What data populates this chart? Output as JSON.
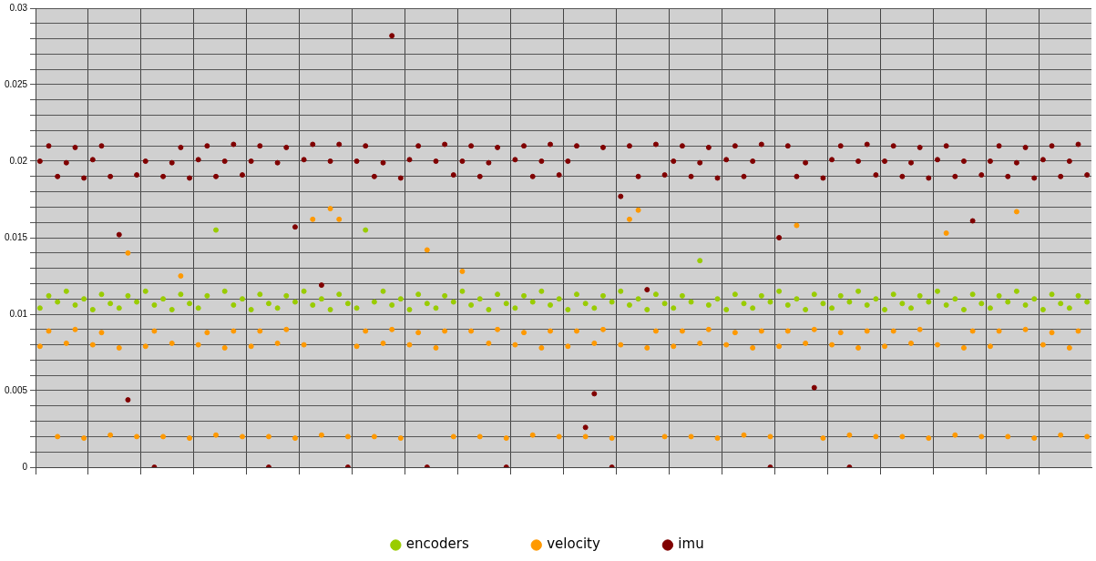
{
  "chart_data": {
    "type": "scatter",
    "legend": "bottom",
    "grid": true,
    "marker": "circle",
    "tick_labels": "y",
    "categories": [
      null,
      null,
      null,
      null,
      null,
      null,
      null,
      null,
      null,
      null,
      null,
      null,
      null,
      null,
      null,
      null,
      null,
      null,
      null,
      null,
      null,
      null,
      null,
      null,
      null,
      null,
      null,
      null,
      null,
      null,
      null,
      null,
      null,
      null,
      null,
      null,
      null,
      null,
      null,
      null,
      null,
      null,
      null,
      null,
      null,
      null,
      null,
      null,
      null,
      null,
      null,
      null,
      null,
      null,
      null,
      null,
      null,
      null,
      null,
      null,
      null,
      null,
      null,
      null,
      null,
      null,
      null,
      null,
      null,
      null,
      null,
      null,
      null,
      null,
      null,
      null,
      null,
      null,
      null,
      null,
      null,
      null,
      null,
      null,
      null,
      null,
      null,
      null,
      null,
      null,
      null,
      null,
      null,
      null,
      null,
      null,
      null,
      null,
      null,
      null,
      null,
      null,
      null,
      null,
      null,
      null,
      null,
      null,
      null,
      null,
      null,
      null,
      null,
      null,
      null,
      null,
      null,
      null,
      null,
      null
    ],
    "ylim": [
      0,
      0.03
    ],
    "yticks": [
      0,
      {
        "value": 0.001,
        "label": null
      },
      {
        "value": 0.002,
        "label": null
      },
      {
        "value": 0.003,
        "label": null
      },
      {
        "value": 0.004,
        "label": null
      },
      0.005,
      {
        "value": 0.006,
        "label": null
      },
      {
        "value": 0.007,
        "label": null
      },
      {
        "value": 0.008,
        "label": null
      },
      {
        "value": 0.009,
        "label": null
      },
      0.01,
      {
        "value": 0.011,
        "label": null
      },
      {
        "value": 0.012,
        "label": null
      },
      {
        "value": 0.013,
        "label": null
      },
      {
        "value": 0.014,
        "label": null
      },
      0.015,
      {
        "value": 0.016,
        "label": null
      },
      {
        "value": 0.017,
        "label": null
      },
      {
        "value": 0.018,
        "label": null
      },
      {
        "value": 0.019,
        "label": null
      },
      0.02,
      {
        "value": 0.021,
        "label": null
      },
      {
        "value": 0.022,
        "label": null
      },
      {
        "value": 0.023,
        "label": null
      },
      {
        "value": 0.024,
        "label": null
      },
      0.025,
      {
        "value": 0.026,
        "label": null
      },
      {
        "value": 0.027,
        "label": null
      },
      {
        "value": 0.028,
        "label": null
      },
      {
        "value": 0.029,
        "label": null
      },
      0.03
    ],
    "series": [
      {
        "name": "encoders",
        "color": "#99cc00",
        "values": [
          0.0104,
          0.0112,
          0.0108,
          0.0115,
          0.0106,
          0.011,
          0.0103,
          0.0113,
          0.0107,
          0.0104,
          0.0112,
          0.0108,
          0.0115,
          0.0106,
          0.011,
          0.0103,
          0.0113,
          0.0107,
          0.0104,
          0.0112,
          0.0155,
          0.0115,
          0.0106,
          0.011,
          0.0103,
          0.0113,
          0.0107,
          0.0104,
          0.0112,
          0.0108,
          0.0115,
          0.0106,
          0.011,
          0.0103,
          0.0113,
          0.0107,
          0.0104,
          0.0155,
          0.0108,
          0.0115,
          0.0106,
          0.011,
          0.0103,
          0.0113,
          0.0107,
          0.0104,
          0.0112,
          0.0108,
          0.0115,
          0.0106,
          0.011,
          0.0103,
          0.0113,
          0.0107,
          0.0104,
          0.0112,
          0.0108,
          0.0115,
          0.0106,
          0.011,
          0.0103,
          0.0113,
          0.0107,
          0.0104,
          0.0112,
          0.0108,
          0.0115,
          0.0106,
          0.011,
          0.0103,
          0.0113,
          0.0107,
          0.0104,
          0.0112,
          0.0108,
          0.0135,
          0.0106,
          0.011,
          0.0103,
          0.0113,
          0.0107,
          0.0104,
          0.0112,
          0.0108,
          0.0115,
          0.0106,
          0.011,
          0.0103,
          0.0113,
          0.0107,
          0.0104,
          0.0112,
          0.0108,
          0.0115,
          0.0106,
          0.011,
          0.0103,
          0.0113,
          0.0107,
          0.0104,
          0.0112,
          0.0108,
          0.0115,
          0.0106,
          0.011,
          0.0103,
          0.0113,
          0.0107,
          0.0104,
          0.0112,
          0.0108,
          0.0115,
          0.0106,
          0.011,
          0.0103,
          0.0113,
          0.0107,
          0.0104,
          0.0112,
          0.0108
        ]
      },
      {
        "name": "velocity",
        "color": "#ff9900",
        "values": [
          0.0079,
          0.0089,
          0.002,
          0.0081,
          0.009,
          0.0019,
          0.008,
          0.0088,
          0.0021,
          0.0078,
          0.014,
          0.002,
          0.0079,
          0.0089,
          0.002,
          0.0081,
          0.0125,
          0.0019,
          0.008,
          0.0088,
          0.0021,
          0.0078,
          0.0089,
          0.002,
          0.0079,
          0.0089,
          0.002,
          0.0081,
          0.009,
          0.0019,
          0.008,
          0.0162,
          0.0021,
          0.0169,
          0.0162,
          0.002,
          0.0079,
          0.0089,
          0.002,
          0.0081,
          0.009,
          0.0019,
          0.008,
          0.0088,
          0.0142,
          0.0078,
          0.0089,
          0.002,
          0.0128,
          0.0089,
          0.002,
          0.0081,
          0.009,
          0.0019,
          0.008,
          0.0088,
          0.0021,
          0.0078,
          0.0089,
          0.002,
          0.0079,
          0.0089,
          0.002,
          0.0081,
          0.009,
          0.0019,
          0.008,
          0.0162,
          0.0168,
          0.0078,
          0.0089,
          0.002,
          0.0079,
          0.0089,
          0.002,
          0.0081,
          0.009,
          0.0019,
          0.008,
          0.0088,
          0.0021,
          0.0078,
          0.0089,
          0.002,
          0.0079,
          0.0089,
          0.0158,
          0.0081,
          0.009,
          0.0019,
          0.008,
          0.0088,
          0.0021,
          0.0078,
          0.0089,
          0.002,
          0.0079,
          0.0089,
          0.002,
          0.0081,
          0.009,
          0.0019,
          0.008,
          0.0153,
          0.0021,
          0.0078,
          0.0089,
          0.002,
          0.0079,
          0.0089,
          0.002,
          0.0167,
          0.009,
          0.0019,
          0.008,
          0.0088,
          0.0021,
          0.0078,
          0.0089,
          0.002
        ]
      },
      {
        "name": "imu",
        "color": "#800000",
        "values": [
          0.02,
          0.021,
          0.019,
          0.0199,
          0.0209,
          0.0189,
          0.0201,
          0.021,
          0.019,
          0.0152,
          0.0044,
          0.0191,
          0.02,
          0,
          0.019,
          0.0199,
          0.0209,
          0.0189,
          0.0201,
          0.021,
          0.019,
          0.02,
          0.0211,
          0.0191,
          0.02,
          0.021,
          0,
          0.0199,
          0.0209,
          0.0157,
          0.0201,
          0.0211,
          0.0119,
          0.02,
          0.0211,
          0,
          0.02,
          0.021,
          0.019,
          0.0199,
          0.0282,
          0.0189,
          0.0201,
          0.021,
          0,
          0.02,
          0.0211,
          0.0191,
          0.02,
          0.021,
          0.019,
          0.0199,
          0.0209,
          0,
          0.0201,
          0.021,
          0.019,
          0.02,
          0.0211,
          0.0191,
          0.02,
          0.021,
          0.0026,
          0.0048,
          0.0209,
          0,
          0.0177,
          0.021,
          0.019,
          0.0116,
          0.0211,
          0.0191,
          0.02,
          0.021,
          0.019,
          0.0199,
          0.0209,
          0.0189,
          0.0201,
          0.021,
          0.019,
          0.02,
          0.0211,
          0,
          0.015,
          0.021,
          0.019,
          0.0199,
          0.0052,
          0.0189,
          0.0201,
          0.021,
          0,
          0.02,
          0.0211,
          0.0191,
          0.02,
          0.021,
          0.019,
          0.0199,
          0.0209,
          0.0189,
          0.0201,
          0.021,
          0.019,
          0.02,
          0.0161,
          0.0191,
          0.02,
          0.021,
          0.019,
          0.0199,
          0.0209,
          0.0189,
          0.0201,
          0.021,
          0.019,
          0.02,
          0.0211,
          0.0191
        ]
      }
    ]
  }
}
